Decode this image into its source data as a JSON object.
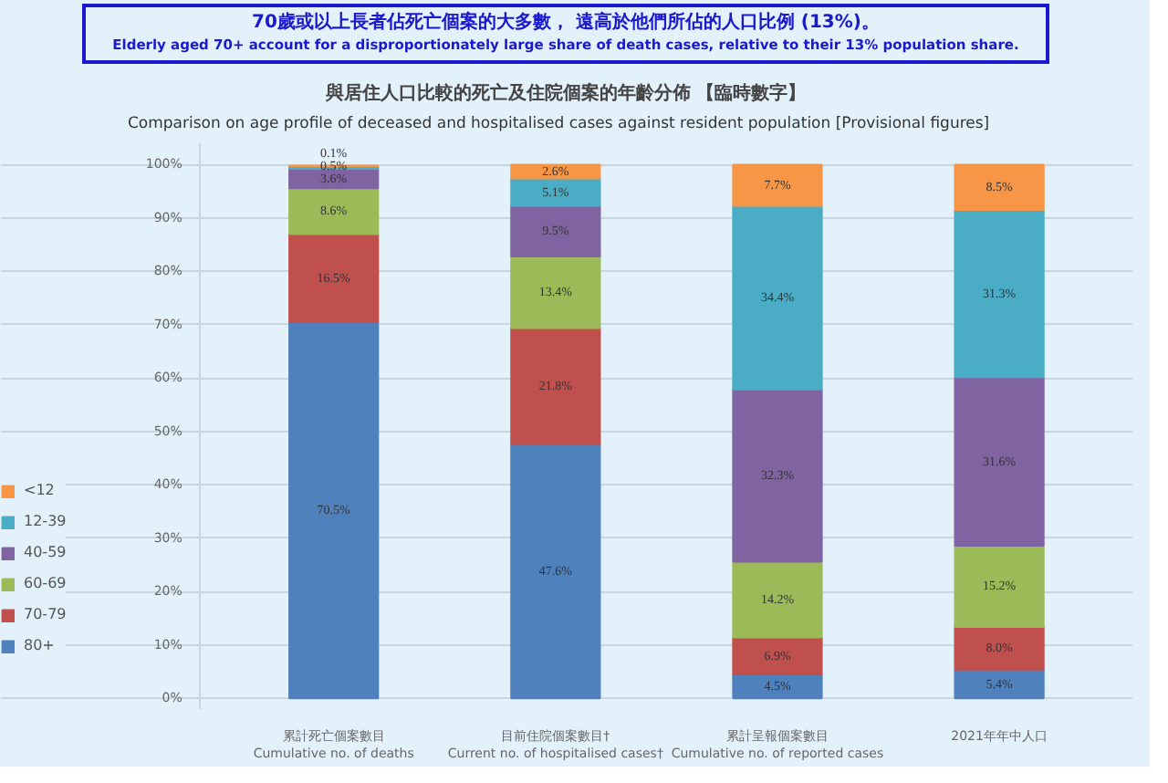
{
  "chart_data": {
    "type": "bar",
    "stacked": true,
    "annotations": [
      "70歲或以上長者佔死亡個案的大多數， 遠高於他們所佔的人口比例 (13%)。",
      "Elderly aged 70+ account for a disproportionately large share of death cases, relative to their 13% population share."
    ],
    "title": "與居住人口比較的死亡及住院個案的年齡分佈 【臨時數字】",
    "subtitle": "Comparison on age profile of deceased and hospitalised cases against resident population [Provisional figures]",
    "categories": [
      "累計死亡個案數目\nCumulative no. of deaths",
      "目前住院個案數目†\nCurrent no. of hospitalised cases†",
      "累計呈報個案數目\nCumulative no. of reported cases",
      "2021年年中人口"
    ],
    "series": [
      {
        "name": "80+",
        "color": "#4f81bd",
        "values": [
          70.5,
          47.6,
          4.5,
          5.4
        ]
      },
      {
        "name": "70-79",
        "color": "#c0504d",
        "values": [
          16.5,
          21.8,
          6.9,
          8.0
        ]
      },
      {
        "name": "60-69",
        "color": "#9bbb59",
        "values": [
          8.6,
          13.4,
          14.2,
          15.2
        ]
      },
      {
        "name": "40-59",
        "color": "#8064a2",
        "values": [
          3.6,
          9.5,
          32.3,
          31.6
        ]
      },
      {
        "name": "12-39",
        "color": "#4bacc6",
        "values": [
          0.5,
          5.1,
          34.4,
          31.3
        ]
      },
      {
        "name": "<12",
        "color": "#f79646",
        "values": [
          0.1,
          2.6,
          7.7,
          8.5
        ]
      }
    ],
    "value_labels": [
      [
        "70.5%",
        "47.6%",
        "4.5%",
        "5.4%"
      ],
      [
        "16.5%",
        "21.8%",
        "6.9%",
        "8.0%"
      ],
      [
        "8.6%",
        "13.4%",
        "14.2%",
        "15.2%"
      ],
      [
        "3.6%",
        "9.5%",
        "32.3%",
        "31.6%"
      ],
      [
        "0.5%",
        "5.1%",
        "34.4%",
        "31.3%"
      ],
      [
        "0.1%",
        "2.6%",
        "7.7%",
        "8.5%"
      ]
    ],
    "ylim": [
      -2,
      104
    ],
    "yticks": [
      {
        "value": 0,
        "label": "0%"
      },
      {
        "value": 10,
        "label": "10%"
      },
      {
        "value": 20,
        "label": "20%"
      },
      {
        "value": 30,
        "label": "30%"
      },
      {
        "value": 40,
        "label": "40%"
      },
      {
        "value": 50,
        "label": "50%"
      },
      {
        "value": 60,
        "label": "60%"
      },
      {
        "value": 70,
        "label": "70%"
      },
      {
        "value": 80,
        "label": "80%"
      },
      {
        "value": 90,
        "label": "90%"
      },
      {
        "value": 100,
        "label": "100%"
      }
    ],
    "grid": "y",
    "legend": "left"
  }
}
